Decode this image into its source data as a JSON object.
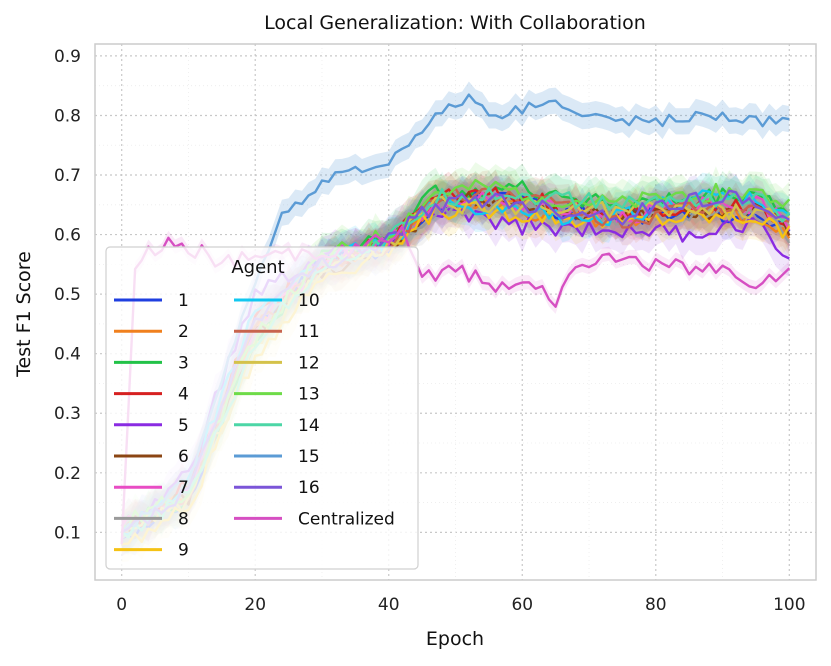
{
  "chart_data": {
    "type": "line",
    "title": "Local Generalization: With Collaboration",
    "xlabel": "Epoch",
    "ylabel": "Test F1 Score",
    "xlim": [
      -4,
      104
    ],
    "ylim": [
      0.02,
      0.92
    ],
    "xticks": [
      0,
      20,
      40,
      60,
      80,
      100
    ],
    "yticks": [
      0.1,
      0.2,
      0.3,
      0.4,
      0.5,
      0.6,
      0.7,
      0.8,
      0.9
    ],
    "xtick_labels": [
      "0",
      "20",
      "40",
      "60",
      "80",
      "100"
    ],
    "ytick_labels": [
      "0.1",
      "0.2",
      "0.3",
      "0.4",
      "0.5",
      "0.6",
      "0.7",
      "0.8",
      "0.9"
    ],
    "grid": true,
    "legend": {
      "title": "Agent",
      "placement": "lower-left",
      "columns": 2
    },
    "series": [
      {
        "name": "1",
        "color": "#1f3fe0",
        "knots": [
          [
            0,
            0.09
          ],
          [
            10,
            0.15
          ],
          [
            20,
            0.45
          ],
          [
            30,
            0.55
          ],
          [
            40,
            0.58
          ],
          [
            47,
            0.65
          ],
          [
            55,
            0.66
          ],
          [
            65,
            0.64
          ],
          [
            75,
            0.63
          ],
          [
            85,
            0.63
          ],
          [
            95,
            0.64
          ],
          [
            100,
            0.61
          ]
        ]
      },
      {
        "name": "2",
        "color": "#f0801e",
        "knots": [
          [
            0,
            0.1
          ],
          [
            10,
            0.17
          ],
          [
            20,
            0.44
          ],
          [
            30,
            0.54
          ],
          [
            40,
            0.58
          ],
          [
            47,
            0.66
          ],
          [
            55,
            0.65
          ],
          [
            65,
            0.63
          ],
          [
            75,
            0.62
          ],
          [
            85,
            0.64
          ],
          [
            95,
            0.63
          ],
          [
            100,
            0.6
          ]
        ]
      },
      {
        "name": "3",
        "color": "#22c248",
        "knots": [
          [
            0,
            0.11
          ],
          [
            10,
            0.16
          ],
          [
            20,
            0.42
          ],
          [
            30,
            0.56
          ],
          [
            40,
            0.6
          ],
          [
            47,
            0.67
          ],
          [
            55,
            0.68
          ],
          [
            65,
            0.67
          ],
          [
            75,
            0.65
          ],
          [
            85,
            0.66
          ],
          [
            95,
            0.67
          ],
          [
            100,
            0.64
          ]
        ]
      },
      {
        "name": "4",
        "color": "#d62020",
        "knots": [
          [
            0,
            0.1
          ],
          [
            10,
            0.18
          ],
          [
            20,
            0.46
          ],
          [
            30,
            0.55
          ],
          [
            40,
            0.59
          ],
          [
            47,
            0.66
          ],
          [
            55,
            0.67
          ],
          [
            65,
            0.65
          ],
          [
            75,
            0.63
          ],
          [
            85,
            0.65
          ],
          [
            95,
            0.65
          ],
          [
            100,
            0.62
          ]
        ]
      },
      {
        "name": "5",
        "color": "#8a2be2",
        "knots": [
          [
            0,
            0.09
          ],
          [
            10,
            0.2
          ],
          [
            20,
            0.5
          ],
          [
            30,
            0.56
          ],
          [
            40,
            0.59
          ],
          [
            47,
            0.64
          ],
          [
            55,
            0.62
          ],
          [
            65,
            0.61
          ],
          [
            75,
            0.61
          ],
          [
            85,
            0.6
          ],
          [
            95,
            0.62
          ],
          [
            100,
            0.57
          ]
        ]
      },
      {
        "name": "6",
        "color": "#8b4513",
        "knots": [
          [
            0,
            0.1
          ],
          [
            10,
            0.16
          ],
          [
            20,
            0.43
          ],
          [
            30,
            0.54
          ],
          [
            40,
            0.58
          ],
          [
            47,
            0.65
          ],
          [
            55,
            0.66
          ],
          [
            65,
            0.64
          ],
          [
            75,
            0.63
          ],
          [
            85,
            0.64
          ],
          [
            95,
            0.64
          ],
          [
            100,
            0.61
          ]
        ]
      },
      {
        "name": "7",
        "color": "#e84cc4",
        "knots": [
          [
            0,
            0.11
          ],
          [
            10,
            0.17
          ],
          [
            20,
            0.45
          ],
          [
            30,
            0.55
          ],
          [
            40,
            0.59
          ],
          [
            47,
            0.65
          ],
          [
            55,
            0.66
          ],
          [
            65,
            0.65
          ],
          [
            75,
            0.63
          ],
          [
            85,
            0.65
          ],
          [
            95,
            0.65
          ],
          [
            100,
            0.62
          ]
        ]
      },
      {
        "name": "8",
        "color": "#9a9a9a",
        "knots": [
          [
            0,
            0.09
          ],
          [
            10,
            0.15
          ],
          [
            20,
            0.44
          ],
          [
            30,
            0.54
          ],
          [
            40,
            0.58
          ],
          [
            47,
            0.64
          ],
          [
            55,
            0.65
          ],
          [
            65,
            0.64
          ],
          [
            75,
            0.63
          ],
          [
            85,
            0.63
          ],
          [
            95,
            0.64
          ],
          [
            100,
            0.6
          ]
        ]
      },
      {
        "name": "9",
        "color": "#f5c214",
        "knots": [
          [
            0,
            0.08
          ],
          [
            10,
            0.14
          ],
          [
            20,
            0.4
          ],
          [
            30,
            0.53
          ],
          [
            40,
            0.57
          ],
          [
            47,
            0.64
          ],
          [
            55,
            0.64
          ],
          [
            65,
            0.63
          ],
          [
            75,
            0.62
          ],
          [
            85,
            0.63
          ],
          [
            95,
            0.63
          ],
          [
            100,
            0.6
          ]
        ]
      },
      {
        "name": "10",
        "color": "#12c8f0",
        "knots": [
          [
            0,
            0.1
          ],
          [
            10,
            0.18
          ],
          [
            20,
            0.47
          ],
          [
            30,
            0.56
          ],
          [
            40,
            0.59
          ],
          [
            47,
            0.65
          ],
          [
            55,
            0.64
          ],
          [
            65,
            0.63
          ],
          [
            75,
            0.63
          ],
          [
            85,
            0.66
          ],
          [
            95,
            0.66
          ],
          [
            100,
            0.62
          ]
        ]
      },
      {
        "name": "11",
        "color": "#c8644e",
        "knots": [
          [
            0,
            0.1
          ],
          [
            10,
            0.16
          ],
          [
            20,
            0.44
          ],
          [
            30,
            0.55
          ],
          [
            40,
            0.58
          ],
          [
            47,
            0.66
          ],
          [
            55,
            0.67
          ],
          [
            65,
            0.65
          ],
          [
            75,
            0.62
          ],
          [
            85,
            0.64
          ],
          [
            95,
            0.65
          ],
          [
            100,
            0.61
          ]
        ]
      },
      {
        "name": "12",
        "color": "#d4c24a",
        "knots": [
          [
            0,
            0.1
          ],
          [
            10,
            0.15
          ],
          [
            20,
            0.41
          ],
          [
            30,
            0.54
          ],
          [
            40,
            0.58
          ],
          [
            47,
            0.65
          ],
          [
            55,
            0.65
          ],
          [
            65,
            0.64
          ],
          [
            75,
            0.64
          ],
          [
            85,
            0.64
          ],
          [
            95,
            0.64
          ],
          [
            100,
            0.62
          ]
        ]
      },
      {
        "name": "13",
        "color": "#6edb48",
        "knots": [
          [
            0,
            0.11
          ],
          [
            10,
            0.17
          ],
          [
            20,
            0.43
          ],
          [
            30,
            0.56
          ],
          [
            40,
            0.6
          ],
          [
            47,
            0.67
          ],
          [
            55,
            0.68
          ],
          [
            65,
            0.66
          ],
          [
            75,
            0.65
          ],
          [
            85,
            0.67
          ],
          [
            95,
            0.67
          ],
          [
            100,
            0.65
          ]
        ]
      },
      {
        "name": "14",
        "color": "#4cd6a6",
        "knots": [
          [
            0,
            0.1
          ],
          [
            10,
            0.16
          ],
          [
            20,
            0.42
          ],
          [
            30,
            0.55
          ],
          [
            40,
            0.59
          ],
          [
            47,
            0.66
          ],
          [
            55,
            0.67
          ],
          [
            65,
            0.66
          ],
          [
            75,
            0.65
          ],
          [
            85,
            0.66
          ],
          [
            95,
            0.66
          ],
          [
            100,
            0.63
          ]
        ]
      },
      {
        "name": "15",
        "color": "#5b9bd5",
        "knots": [
          [
            0,
            0.1
          ],
          [
            10,
            0.19
          ],
          [
            20,
            0.52
          ],
          [
            24,
            0.63
          ],
          [
            30,
            0.69
          ],
          [
            40,
            0.72
          ],
          [
            46,
            0.79
          ],
          [
            52,
            0.83
          ],
          [
            56,
            0.8
          ],
          [
            60,
            0.81
          ],
          [
            64,
            0.83
          ],
          [
            68,
            0.8
          ],
          [
            75,
            0.79
          ],
          [
            80,
            0.79
          ],
          [
            88,
            0.8
          ],
          [
            95,
            0.79
          ],
          [
            100,
            0.79
          ]
        ]
      },
      {
        "name": "16",
        "color": "#7b55d8",
        "knots": [
          [
            0,
            0.1
          ],
          [
            10,
            0.17
          ],
          [
            20,
            0.46
          ],
          [
            30,
            0.55
          ],
          [
            40,
            0.59
          ],
          [
            47,
            0.65
          ],
          [
            55,
            0.66
          ],
          [
            65,
            0.64
          ],
          [
            75,
            0.63
          ],
          [
            85,
            0.66
          ],
          [
            95,
            0.66
          ],
          [
            100,
            0.62
          ]
        ]
      },
      {
        "name": "Centralized",
        "color": "#d64fc2",
        "knots": [
          [
            0,
            0.08
          ],
          [
            2,
            0.55
          ],
          [
            5,
            0.58
          ],
          [
            10,
            0.58
          ],
          [
            15,
            0.55
          ],
          [
            20,
            0.56
          ],
          [
            30,
            0.57
          ],
          [
            40,
            0.59
          ],
          [
            42,
            0.6
          ],
          [
            45,
            0.52
          ],
          [
            50,
            0.55
          ],
          [
            55,
            0.51
          ],
          [
            60,
            0.53
          ],
          [
            65,
            0.49
          ],
          [
            70,
            0.56
          ],
          [
            75,
            0.56
          ],
          [
            80,
            0.55
          ],
          [
            85,
            0.54
          ],
          [
            90,
            0.54
          ],
          [
            95,
            0.52
          ],
          [
            100,
            0.54
          ]
        ]
      }
    ]
  }
}
